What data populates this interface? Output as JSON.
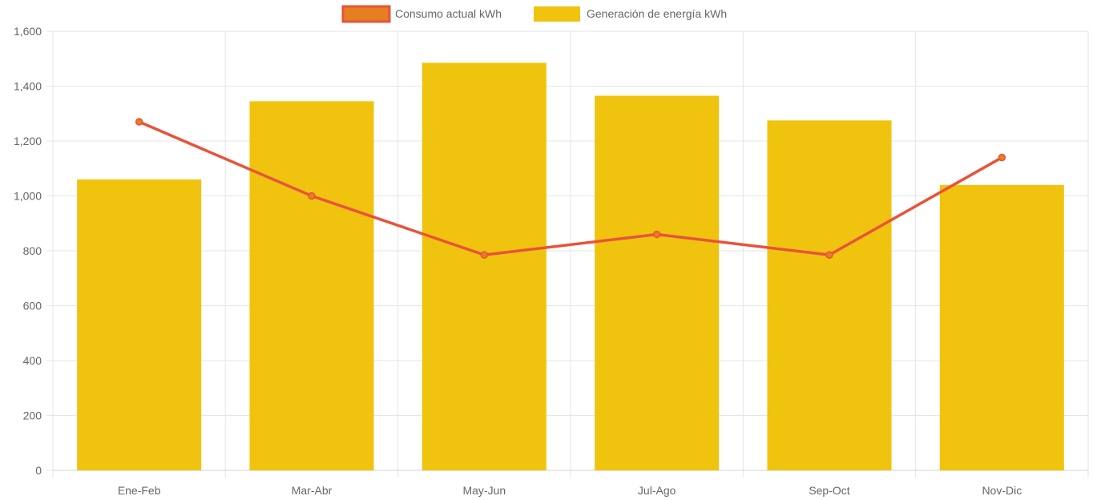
{
  "chart_data": {
    "type": "bar",
    "categories": [
      "Ene-Feb",
      "Mar-Abr",
      "May-Jun",
      "Jul-Ago",
      "Sep-Oct",
      "Nov-Dic"
    ],
    "series": [
      {
        "name": "Consumo actual kWh",
        "type": "line",
        "color": "#e8533a",
        "point_color": "#e67e22",
        "values": [
          1270,
          1000,
          785,
          860,
          785,
          1140
        ]
      },
      {
        "name": "Generación de energía kWh",
        "type": "bar",
        "color": "#f0c30f",
        "values": [
          1060,
          1345,
          1485,
          1365,
          1275,
          1040
        ]
      }
    ],
    "ylim": [
      0,
      1600
    ],
    "yticks": [
      0,
      200,
      400,
      600,
      800,
      1000,
      1200,
      1400,
      1600
    ],
    "ytick_labels": [
      "0",
      "200",
      "400",
      "600",
      "800",
      "1,000",
      "1,200",
      "1,400",
      "1,600"
    ],
    "grid": true,
    "legend_position": "top"
  }
}
